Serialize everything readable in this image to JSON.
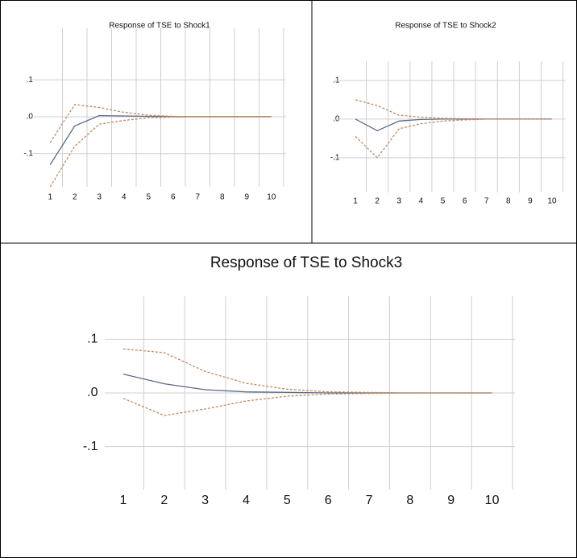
{
  "chart_data": [
    {
      "type": "line",
      "title": "Response of TSE to Shock1",
      "categories": [
        "1",
        "2",
        "3",
        "4",
        "5",
        "6",
        "7",
        "8",
        "9",
        "10"
      ],
      "series": [
        {
          "color": "#5b6a85",
          "style": "solid",
          "values": [
            -0.13,
            -0.025,
            0.003,
            0.002,
            0.001,
            0,
            0,
            0,
            0,
            0
          ]
        },
        {
          "color": "#c08a5e",
          "style": "dashed",
          "values": [
            -0.07,
            0.033,
            0.025,
            0.012,
            0.004,
            0.001,
            0,
            0,
            0,
            0
          ]
        },
        {
          "color": "#c08a5e",
          "style": "dashed",
          "values": [
            -0.19,
            -0.08,
            -0.02,
            -0.01,
            -0.003,
            -0.001,
            0,
            0,
            0,
            0
          ]
        }
      ],
      "ylim": [
        -0.19,
        0.24
      ],
      "yticks": [
        {
          "value": 0.1,
          "label": ".1"
        },
        {
          "value": 0,
          "label": ".0"
        },
        {
          "value": -0.1,
          "label": "-.1"
        }
      ],
      "grid": true
    },
    {
      "type": "line",
      "title": "Response of TSE to Shock2",
      "categories": [
        "1",
        "2",
        "3",
        "4",
        "5",
        "6",
        "7",
        "8",
        "9",
        "10"
      ],
      "series": [
        {
          "color": "#5b6a85",
          "style": "solid",
          "values": [
            0,
            -0.03,
            -0.005,
            -0.001,
            0,
            0,
            0,
            0,
            0,
            0
          ]
        },
        {
          "color": "#c08a5e",
          "style": "dashed",
          "values": [
            0.05,
            0.035,
            0.01,
            0.005,
            0.002,
            0.001,
            0,
            0,
            0,
            0
          ]
        },
        {
          "color": "#c08a5e",
          "style": "dashed",
          "values": [
            -0.045,
            -0.1,
            -0.025,
            -0.012,
            -0.005,
            -0.002,
            0,
            0,
            0,
            0
          ]
        }
      ],
      "ylim": [
        -0.19,
        0.15
      ],
      "yticks": [
        {
          "value": 0.1,
          "label": ".1"
        },
        {
          "value": 0,
          "label": ".0"
        },
        {
          "value": -0.1,
          "label": "-.1"
        }
      ],
      "grid": true
    },
    {
      "type": "line",
      "title": "Response of TSE to Shock3",
      "categories": [
        "1",
        "2",
        "3",
        "4",
        "5",
        "6",
        "7",
        "8",
        "9",
        "10"
      ],
      "series": [
        {
          "color": "#5b6a85",
          "style": "solid",
          "values": [
            0.035,
            0.017,
            0.006,
            0.002,
            0.001,
            0,
            0,
            0,
            0,
            0
          ]
        },
        {
          "color": "#c08a5e",
          "style": "dashed",
          "values": [
            0.082,
            0.075,
            0.04,
            0.018,
            0.007,
            0.002,
            0.001,
            0,
            0,
            0
          ]
        },
        {
          "color": "#c08a5e",
          "style": "dashed",
          "values": [
            -0.01,
            -0.042,
            -0.03,
            -0.015,
            -0.006,
            -0.002,
            -0.001,
            0,
            0,
            0
          ]
        }
      ],
      "ylim": [
        -0.18,
        0.18
      ],
      "yticks": [
        {
          "value": 0.1,
          "label": ".1"
        },
        {
          "value": 0,
          "label": ".0"
        },
        {
          "value": -0.1,
          "label": "-.1"
        }
      ],
      "grid": true
    }
  ]
}
